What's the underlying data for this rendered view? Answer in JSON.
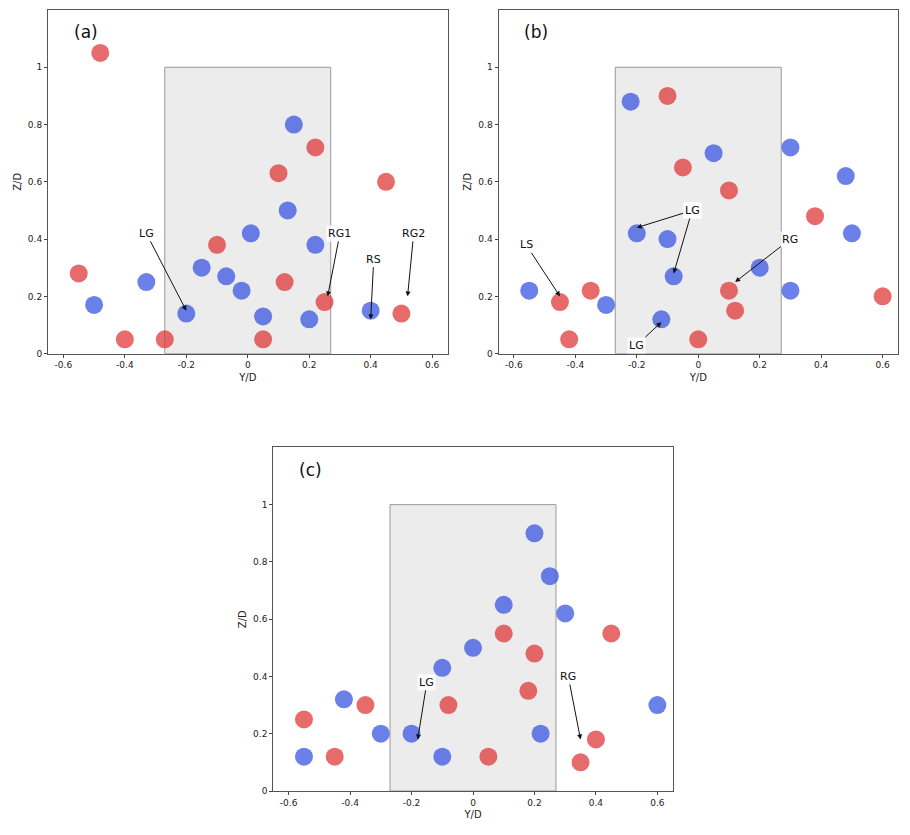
{
  "chart_data": [
    {
      "type": "scatter",
      "title": "(a)",
      "x_label": "Y/D",
      "y_label": "Z/D",
      "xlim": [
        -0.65,
        0.65
      ],
      "ylim": [
        0,
        1.2
      ],
      "xticks": [
        -0.6,
        -0.4,
        -0.2,
        0,
        0.2,
        0.4,
        0.6
      ],
      "yticks": [
        0,
        0.2,
        0.4,
        0.6,
        0.8,
        1
      ],
      "body": {
        "x": [
          -0.27,
          0.27
        ],
        "y": [
          0,
          1
        ]
      },
      "series": [
        {
          "color": "#e03a3a",
          "marker": "circle",
          "x": [
            -0.55,
            -0.1,
            0.12,
            0.22,
            0.1,
            0.25,
            0.5,
            -0.4,
            -0.27,
            0.45,
            -0.48,
            0.05
          ],
          "y": [
            0.28,
            0.38,
            0.25,
            0.72,
            0.63,
            0.18,
            0.14,
            0.05,
            0.05,
            0.6,
            1.05,
            0.05
          ]
        },
        {
          "color": "#3a55e0",
          "marker": "circle",
          "x": [
            -0.5,
            -0.2,
            -0.15,
            -0.07,
            0.05,
            0.01,
            0.13,
            0.15,
            0.4,
            -0.02,
            -0.33,
            0.22,
            0.2
          ],
          "y": [
            0.17,
            0.14,
            0.3,
            0.27,
            0.13,
            0.42,
            0.5,
            0.8,
            0.15,
            0.22,
            0.25,
            0.38,
            0.12
          ]
        }
      ],
      "annotations": [
        {
          "text": "LG",
          "x": -0.2,
          "y": 0.15,
          "ax": -0.33,
          "ay": 0.42
        },
        {
          "text": "RG1",
          "x": 0.26,
          "y": 0.2,
          "ax": 0.3,
          "ay": 0.42
        },
        {
          "text": "RS",
          "x": 0.4,
          "y": 0.12,
          "ax": 0.41,
          "ay": 0.33
        },
        {
          "text": "RG2",
          "x": 0.52,
          "y": 0.2,
          "ax": 0.54,
          "ay": 0.42
        }
      ]
    },
    {
      "type": "scatter",
      "title": "(b)",
      "x_label": "Y/D",
      "y_label": "Z/D",
      "xlim": [
        -0.65,
        0.65
      ],
      "ylim": [
        0,
        1.2
      ],
      "xticks": [
        -0.6,
        -0.4,
        -0.2,
        0,
        0.2,
        0.4,
        0.6
      ],
      "yticks": [
        0,
        0.2,
        0.4,
        0.6,
        0.8,
        1
      ],
      "body": {
        "x": [
          -0.27,
          0.27
        ],
        "y": [
          0,
          1
        ]
      },
      "series": [
        {
          "color": "#e03a3a",
          "marker": "circle",
          "x": [
            -0.45,
            -0.35,
            0.1,
            0.12,
            -0.42,
            0.6,
            -0.05,
            0.1,
            0.38,
            0.0,
            -0.1
          ],
          "y": [
            0.18,
            0.22,
            0.22,
            0.15,
            0.05,
            0.2,
            0.65,
            0.57,
            0.48,
            0.05,
            0.9
          ]
        },
        {
          "color": "#3a55e0",
          "marker": "circle",
          "x": [
            -0.2,
            -0.1,
            -0.08,
            -0.12,
            -0.55,
            -0.3,
            0.3,
            0.2,
            0.3,
            0.5,
            0.05,
            0.48,
            -0.22
          ],
          "y": [
            0.42,
            0.4,
            0.27,
            0.12,
            0.22,
            0.17,
            0.22,
            0.3,
            0.72,
            0.42,
            0.7,
            0.62,
            0.88
          ]
        }
      ],
      "annotations": [
        {
          "text": "LG",
          "x": -0.2,
          "y": 0.44,
          "ax": -0.02,
          "ay": 0.5
        },
        {
          "text": "LG",
          "x": -0.08,
          "y": 0.28,
          "ax": -0.02,
          "ay": 0.5
        },
        {
          "text": "LG",
          "x": -0.12,
          "y": 0.11,
          "ax": -0.2,
          "ay": 0.03
        },
        {
          "text": "LS",
          "x": -0.45,
          "y": 0.2,
          "ax": -0.56,
          "ay": 0.38
        },
        {
          "text": "RG",
          "x": 0.12,
          "y": 0.25,
          "ax": 0.3,
          "ay": 0.4
        }
      ]
    },
    {
      "type": "scatter",
      "title": "(c)",
      "x_label": "Y/D",
      "y_label": "Z/D",
      "xlim": [
        -0.65,
        0.65
      ],
      "ylim": [
        0,
        1.2
      ],
      "xticks": [
        -0.6,
        -0.4,
        -0.2,
        0,
        0.2,
        0.4,
        0.6
      ],
      "yticks": [
        0,
        0.2,
        0.4,
        0.6,
        0.8,
        1
      ],
      "body": {
        "x": [
          -0.27,
          0.27
        ],
        "y": [
          0,
          1
        ]
      },
      "series": [
        {
          "color": "#e03a3a",
          "marker": "circle",
          "x": [
            -0.35,
            -0.55,
            0.35,
            0.4,
            0.1,
            0.2,
            -0.08,
            0.05,
            0.18,
            0.45,
            -0.45
          ],
          "y": [
            0.3,
            0.25,
            0.1,
            0.18,
            0.55,
            0.48,
            0.3,
            0.12,
            0.35,
            0.55,
            0.12
          ]
        },
        {
          "color": "#3a55e0",
          "marker": "circle",
          "x": [
            -0.2,
            -0.1,
            -0.3,
            -0.42,
            -0.1,
            0.1,
            0.3,
            0.2,
            0.25,
            0.0,
            0.6,
            0.22,
            -0.55
          ],
          "y": [
            0.2,
            0.12,
            0.2,
            0.32,
            0.43,
            0.65,
            0.62,
            0.9,
            0.75,
            0.5,
            0.3,
            0.2,
            0.12
          ]
        }
      ],
      "annotations": [
        {
          "text": "LG",
          "x": -0.18,
          "y": 0.18,
          "ax": -0.15,
          "ay": 0.38
        },
        {
          "text": "RG",
          "x": 0.35,
          "y": 0.18,
          "ax": 0.31,
          "ay": 0.4
        }
      ]
    }
  ]
}
